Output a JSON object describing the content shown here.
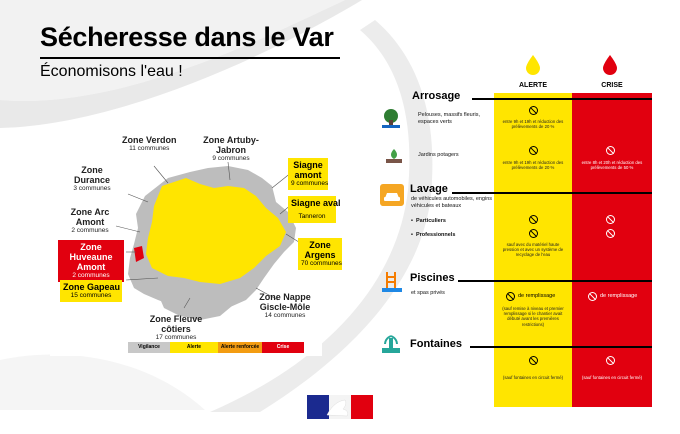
{
  "header": {
    "title": "Sécheresse dans le Var",
    "subtitle": "Économisons l'eau !"
  },
  "map": {
    "zones": [
      {
        "name": "Zone Verdon",
        "count": "11 communes"
      },
      {
        "name": "Zone Artuby-Jabron",
        "count": "9 communes"
      },
      {
        "name": "Zone Durance",
        "count": "3 communes"
      },
      {
        "name": "Zone Arc Amont",
        "count": "2 communes"
      },
      {
        "name": "Zone Huveaune Amont",
        "count": "2 communes"
      },
      {
        "name": "Zone Gapeau",
        "count": "15 communes"
      },
      {
        "name": "Zone Fleuve côtiers",
        "count": "17 communes"
      },
      {
        "name": "Zone Nappe Giscle-Môle",
        "count": "14 communes"
      },
      {
        "name": "Siagne amont",
        "count": "9 communes"
      },
      {
        "name": "Siagne aval",
        "count": "Tanneron"
      },
      {
        "name": "Zone Argens",
        "count": "70 communes"
      }
    ],
    "legend": [
      "Vigilance",
      "Alerte",
      "Alerte renforcée",
      "Crise"
    ],
    "colors": {
      "vigilance": "#c8c8c8",
      "alerte": "#ffe500",
      "alerte_renforcee": "#f39c12",
      "crise": "#e1000f",
      "map_grey": "#bdbdbd"
    }
  },
  "table": {
    "columns": {
      "alerte": "ALERTE",
      "crise": "CRISE"
    },
    "arrosage": {
      "title": "Arrosage",
      "row1": "Pelouses, massifs fleuris, espaces verts",
      "row1_alerte": "entre 9h et 19h et réduction des prélèvements de 20 %",
      "row2": "Jardins potagers",
      "row2_alerte": "entre 9h et 19h et réduction des prélèvements de 20 %",
      "row2_crise": "entre 8h et 20h et réduction des prélèvements de 50 %"
    },
    "lavage": {
      "title": "Lavage",
      "desc": "de véhicules automobiles, engins véhicules et bateaux",
      "row1": "Particuliers",
      "row2": "Professionnels",
      "note": "sauf avec du matériel haute pression et avec un système de recyclage de l'eau"
    },
    "piscines": {
      "title": "Piscines",
      "desc": "et spas privés",
      "alerte": "de remplissage",
      "alerte_note": "(sauf remise à niveau et premier remplissage si le chantier avait débuté avant les premières restrictions)",
      "crise": "de remplissage"
    },
    "fontaines": {
      "title": "Fontaines",
      "alerte_note": "(sauf fontaines en circuit fermé)",
      "crise_note": "(sauf fontaines en circuit fermé)"
    }
  }
}
